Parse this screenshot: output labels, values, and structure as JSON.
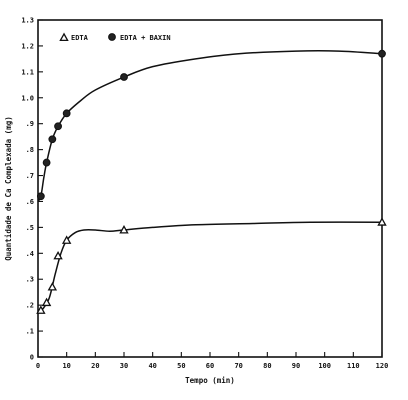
{
  "chart_data": {
    "type": "line",
    "xlabel": "Tempo (min)",
    "ylabel": "Quantidade de Ca Complexada (mg)",
    "xlim": [
      0,
      120
    ],
    "ylim": [
      0,
      1.3
    ],
    "x_ticks": [
      "0",
      "10",
      "20",
      "30",
      "40",
      "50",
      "60",
      "70",
      "80",
      "90",
      "100",
      "110",
      "120"
    ],
    "y_ticks": [
      "0",
      ".1",
      ".2",
      ".3",
      ".4",
      ".5",
      ".6",
      ".7",
      ".8",
      ".9",
      "1.0",
      "1.1",
      "1.2",
      "1.3"
    ],
    "legend": {
      "placement": "top-left"
    },
    "series": [
      {
        "name": "EDTA",
        "marker": "triangle",
        "points": [
          [
            1,
            0.18
          ],
          [
            3,
            0.21
          ],
          [
            5,
            0.27
          ],
          [
            7,
            0.39
          ],
          [
            10,
            0.45
          ],
          [
            30,
            0.49
          ],
          [
            120,
            0.52
          ]
        ],
        "curve": [
          [
            0,
            0.17
          ],
          [
            2,
            0.19
          ],
          [
            4,
            0.23
          ],
          [
            6,
            0.32
          ],
          [
            8,
            0.4
          ],
          [
            10,
            0.45
          ],
          [
            13,
            0.48
          ],
          [
            16,
            0.49
          ],
          [
            20,
            0.49
          ],
          [
            25,
            0.485
          ],
          [
            30,
            0.49
          ],
          [
            40,
            0.5
          ],
          [
            55,
            0.51
          ],
          [
            75,
            0.515
          ],
          [
            95,
            0.52
          ],
          [
            120,
            0.52
          ]
        ]
      },
      {
        "name": "EDTA + BAXIN",
        "marker": "circle",
        "points": [
          [
            1,
            0.62
          ],
          [
            3,
            0.75
          ],
          [
            5,
            0.84
          ],
          [
            7,
            0.89
          ],
          [
            10,
            0.94
          ],
          [
            30,
            1.08
          ],
          [
            120,
            1.17
          ]
        ],
        "curve": [
          [
            0,
            0.6
          ],
          [
            1,
            0.62
          ],
          [
            2,
            0.69
          ],
          [
            3,
            0.75
          ],
          [
            5,
            0.84
          ],
          [
            7,
            0.89
          ],
          [
            10,
            0.94
          ],
          [
            15,
            0.99
          ],
          [
            20,
            1.03
          ],
          [
            30,
            1.08
          ],
          [
            40,
            1.12
          ],
          [
            55,
            1.15
          ],
          [
            70,
            1.17
          ],
          [
            90,
            1.18
          ],
          [
            105,
            1.18
          ],
          [
            120,
            1.17
          ]
        ]
      }
    ]
  }
}
